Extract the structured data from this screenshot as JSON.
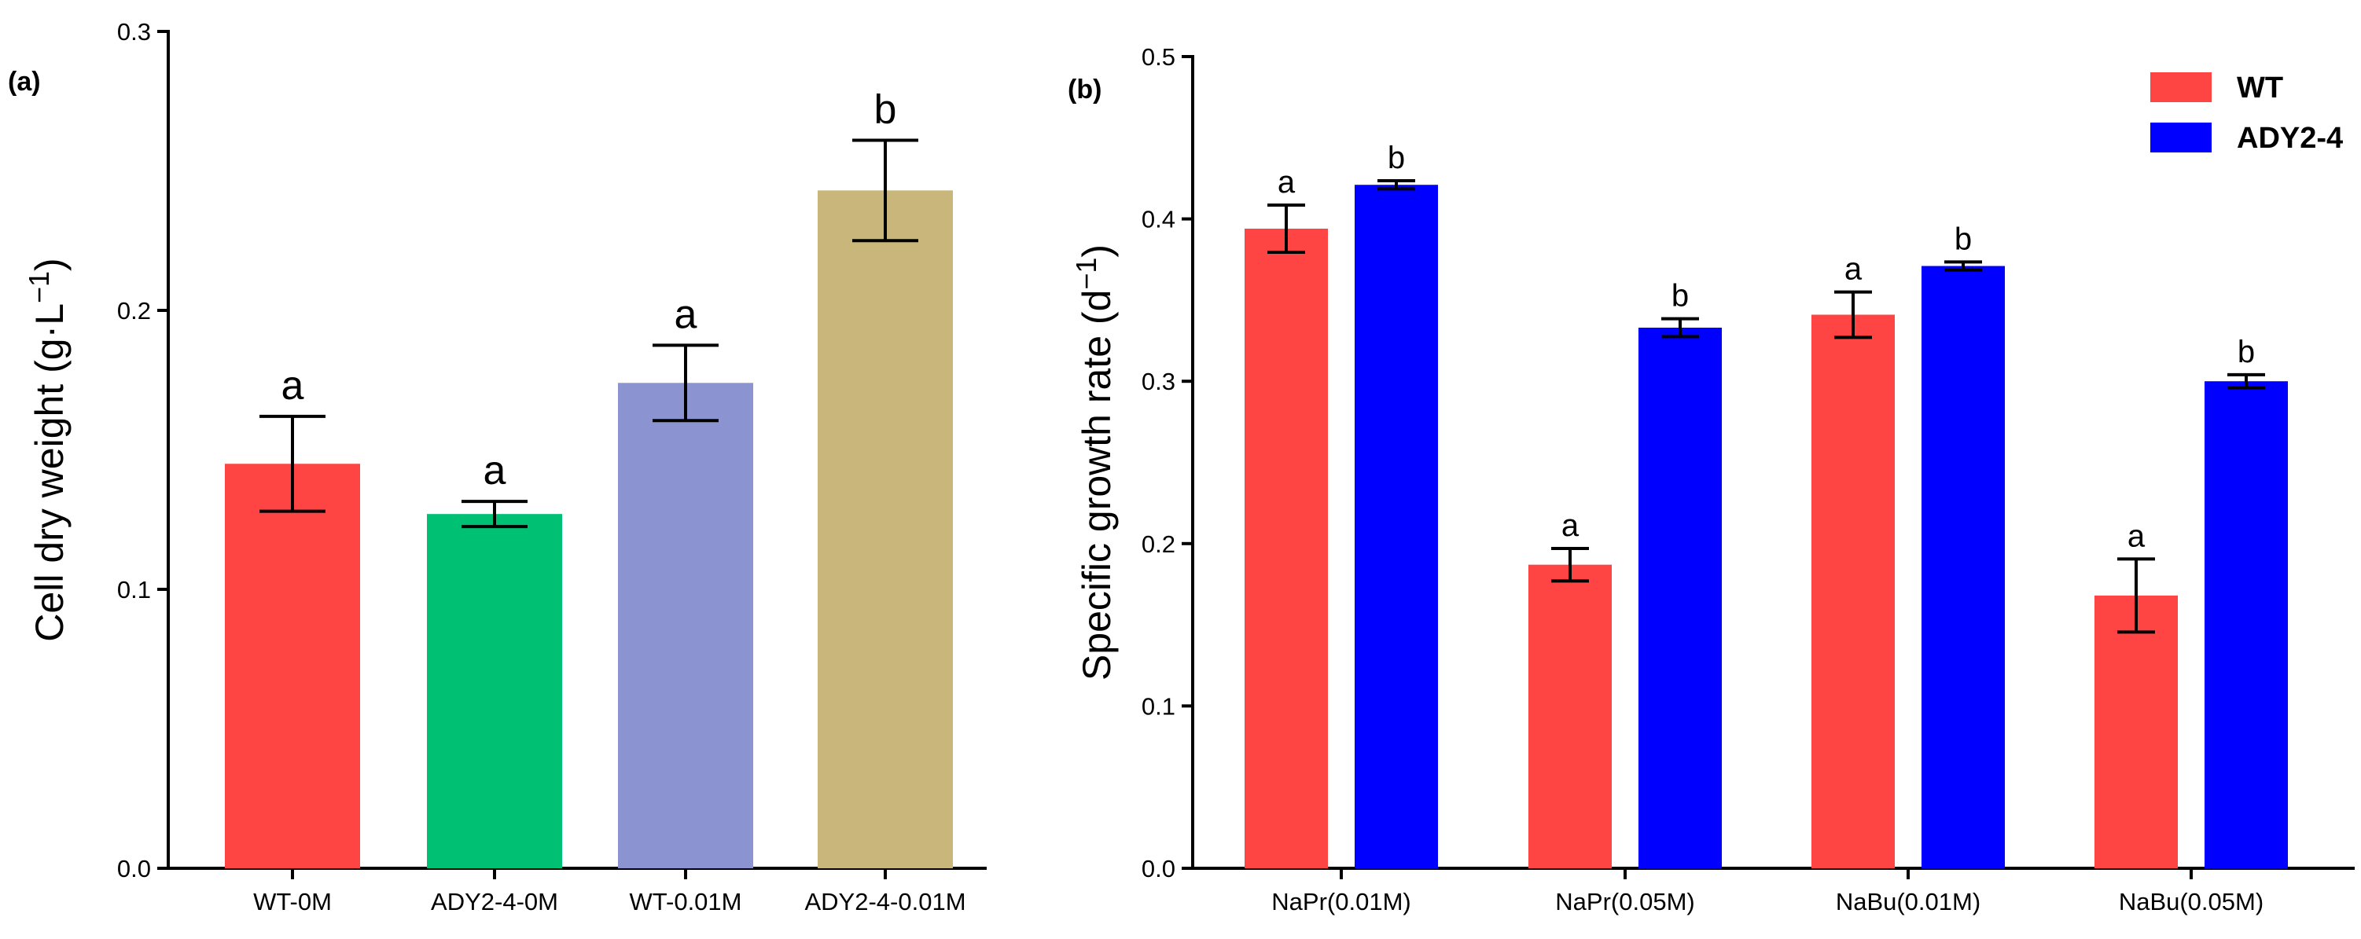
{
  "colors": {
    "wt": "#ff4444",
    "ady0m": "#00c073",
    "wt001": "#8c93d1",
    "ady001": "#c8b67a",
    "ady": "#0000ff"
  },
  "chart_data": [
    {
      "type": "bar",
      "panel": "(a)",
      "title": "",
      "xlabel": "",
      "ylabel": "Cell dry weight (g·L⁻¹)",
      "ylabel_main": "Cell dry weight (g·L",
      "ylabel_sup": "−1",
      "ylabel_end": ")",
      "ylim": [
        0,
        0.3
      ],
      "yticks": [
        "0.0",
        "0.1",
        "0.2",
        "0.3"
      ],
      "categories": [
        "WT-0M",
        "ADY2-4-0M",
        "WT-0.01M",
        "ADY2-4-0.01M"
      ],
      "values": [
        0.145,
        0.127,
        0.174,
        0.243
      ],
      "errors": [
        0.017,
        0.0045,
        0.0135,
        0.018
      ],
      "significance": [
        "a",
        "a",
        "a",
        "b"
      ],
      "bar_colors": [
        "#ff4444",
        "#00c073",
        "#8c93d1",
        "#c8b67a"
      ]
    },
    {
      "type": "bar",
      "panel": "(b)",
      "title": "",
      "xlabel": "",
      "ylabel": "Specific growth rate (d⁻¹)",
      "ylabel_main": "Specific growth rate (d",
      "ylabel_sup": "−1",
      "ylabel_end": ")",
      "ylim": [
        0,
        0.5
      ],
      "yticks": [
        "0.0",
        "0.1",
        "0.2",
        "0.3",
        "0.4",
        "0.5"
      ],
      "categories": [
        "NaPr(0.01M)",
        "NaPr(0.05M)",
        "NaBu(0.01M)",
        "NaBu(0.05M)"
      ],
      "legend_position": "top-right",
      "series": [
        {
          "name": "WT",
          "color": "#ff4444",
          "values": [
            0.394,
            0.187,
            0.341,
            0.168
          ],
          "errors": [
            0.0145,
            0.01,
            0.014,
            0.0225
          ],
          "significance": [
            "a",
            "a",
            "a",
            "a"
          ]
        },
        {
          "name": "ADY2-4",
          "color": "#0000ff",
          "values": [
            0.421,
            0.333,
            0.371,
            0.3
          ],
          "errors": [
            0.0025,
            0.0055,
            0.0025,
            0.004
          ],
          "significance": [
            "b",
            "b",
            "b",
            "b"
          ]
        }
      ]
    }
  ]
}
